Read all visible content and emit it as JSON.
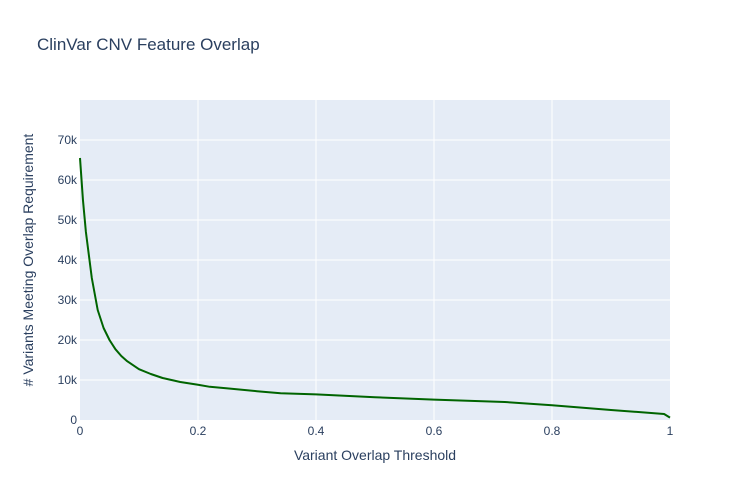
{
  "chart_data": {
    "type": "line",
    "title": "ClinVar CNV Feature Overlap",
    "xlabel": "Variant Overlap Threshold",
    "ylabel": "# Variants Meeting Overlap Requirement",
    "xlim": [
      0,
      1
    ],
    "ylim": [
      0,
      80000
    ],
    "grid": true,
    "x_ticks": [
      {
        "value": 0,
        "label": "0"
      },
      {
        "value": 0.2,
        "label": "0.2"
      },
      {
        "value": 0.4,
        "label": "0.4"
      },
      {
        "value": 0.6,
        "label": "0.6"
      },
      {
        "value": 0.8,
        "label": "0.8"
      },
      {
        "value": 1,
        "label": "1"
      }
    ],
    "y_ticks": [
      {
        "value": 0,
        "label": "0"
      },
      {
        "value": 10000,
        "label": "10k"
      },
      {
        "value": 20000,
        "label": "20k"
      },
      {
        "value": 30000,
        "label": "30k"
      },
      {
        "value": 40000,
        "label": "40k"
      },
      {
        "value": 50000,
        "label": "50k"
      },
      {
        "value": 60000,
        "label": "60k"
      },
      {
        "value": 70000,
        "label": "70k"
      }
    ],
    "series": [
      {
        "color": "#006400",
        "x": [
          0,
          0.005,
          0.01,
          0.02,
          0.03,
          0.04,
          0.05,
          0.06,
          0.07,
          0.08,
          0.1,
          0.12,
          0.14,
          0.17,
          0.2,
          0.22,
          0.25,
          0.3,
          0.34,
          0.4,
          0.5,
          0.6,
          0.72,
          0.8,
          0.9,
          0.99,
          1.0
        ],
        "y": [
          65500,
          55000,
          47000,
          35500,
          27500,
          23000,
          20000,
          17700,
          16000,
          14700,
          12700,
          11500,
          10500,
          9500,
          8800,
          8300,
          7900,
          7200,
          6700,
          6400,
          5700,
          5100,
          4500,
          3700,
          2500,
          1500,
          600
        ]
      }
    ]
  }
}
